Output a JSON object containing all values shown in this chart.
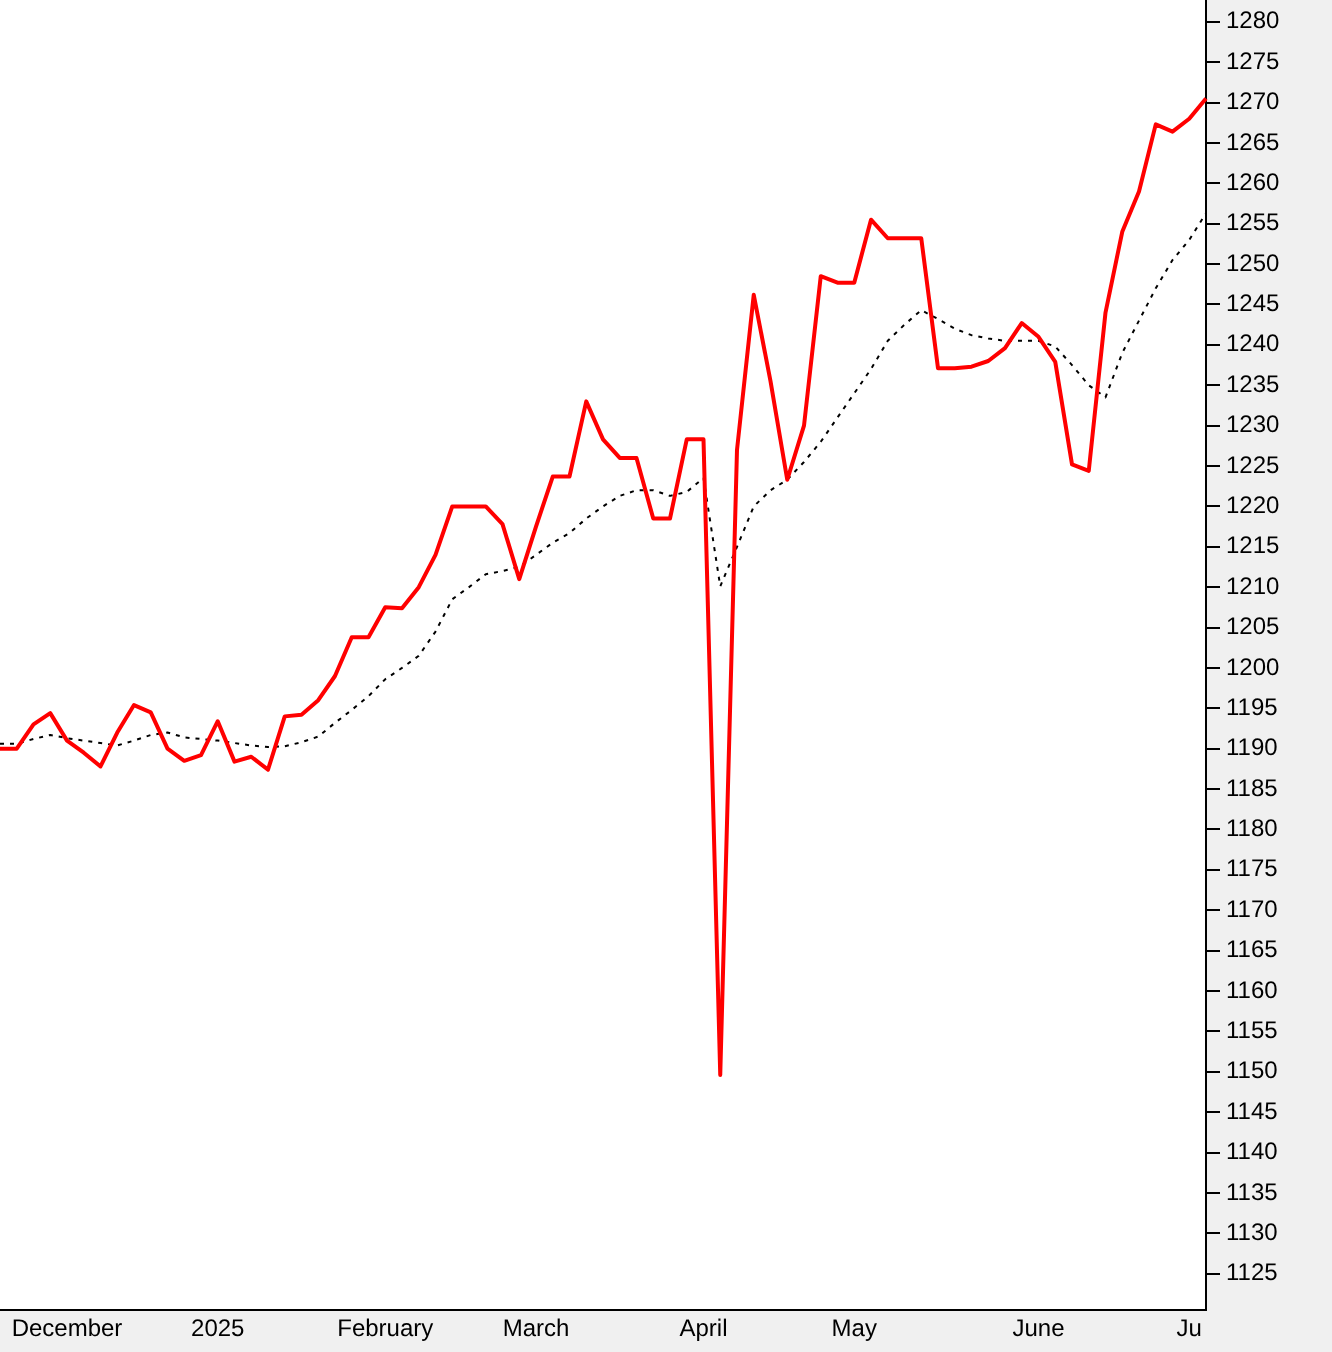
{
  "chart_data": {
    "type": "line",
    "categories": [
      null,
      null,
      null,
      null,
      "December",
      null,
      null,
      null,
      null,
      null,
      null,
      null,
      null,
      "2025",
      null,
      null,
      null,
      null,
      null,
      null,
      null,
      null,
      null,
      "February",
      null,
      null,
      null,
      null,
      null,
      null,
      null,
      null,
      "March",
      null,
      null,
      null,
      null,
      null,
      null,
      null,
      null,
      null,
      "April",
      null,
      null,
      null,
      null,
      null,
      null,
      null,
      null,
      "May",
      null,
      null,
      null,
      null,
      null,
      null,
      null,
      null,
      null,
      null,
      "June",
      null,
      null,
      null,
      null,
      null,
      null,
      null,
      null,
      "Ju",
      null
    ],
    "series": [
      {
        "color": "#ff0000",
        "line_style": "solid",
        "values": [
          1190,
          1190,
          1193,
          1194.4,
          1191,
          1189.5,
          1187.8,
          1192,
          1195.4,
          1194.5,
          1190,
          1188.5,
          1189.2,
          1193.4,
          1188.4,
          1189,
          1187.4,
          1194,
          1194.2,
          1196,
          1199,
          1203.8,
          1203.8,
          1207.5,
          1207.4,
          1210,
          1214,
          1220,
          1220,
          1220,
          1217.8,
          1211,
          1217.5,
          1223.7,
          1223.7,
          1233,
          1228.3,
          1226,
          1226,
          1218.5,
          1218.5,
          1228.3,
          1228.3,
          1149.6,
          1227,
          1246.2,
          1235.5,
          1223.3,
          1230,
          1248.5,
          1247.7,
          1247.7,
          1255.5,
          1253.2,
          1253.2,
          1253.2,
          1237.1,
          1237.1,
          1237.3,
          1238,
          1239.6,
          1242.7,
          1241,
          1237.9,
          1225.2,
          1224.4,
          1244,
          1254,
          1259,
          1267.3,
          1266.4,
          1268,
          1270.5
        ]
      },
      {
        "color": "#000000",
        "line_style": "dotted",
        "values": [
          1190.6,
          1190.6,
          1191.2,
          1191.7,
          1191.3,
          1191,
          1190.7,
          1190.4,
          1191,
          1191.7,
          1192,
          1191.4,
          1191.2,
          1191,
          1190.7,
          1190.4,
          1190.2,
          1190.3,
          1190.8,
          1191.5,
          1193.2,
          1194.8,
          1196.5,
          1198.6,
          1200,
          1201.5,
          1204.5,
          1208.5,
          1210,
          1211.6,
          1212,
          1212.5,
          1214,
          1215.5,
          1216.7,
          1218.5,
          1220,
          1221.3,
          1222,
          1222,
          1221.3,
          1221.8,
          1223.5,
          1210.1,
          1215,
          1220,
          1222,
          1223.3,
          1225.5,
          1228,
          1231,
          1234,
          1237,
          1240.5,
          1242.5,
          1244.3,
          1243.2,
          1242,
          1241.2,
          1240.8,
          1240.5,
          1240.5,
          1240.5,
          1239.8,
          1237.5,
          1235,
          1233.5,
          1239,
          1243,
          1247,
          1250.5,
          1253,
          1256.3
        ]
      }
    ],
    "ylim": [
      1120.5,
      1282.7
    ],
    "yticks": [
      1125,
      1130,
      1135,
      1140,
      1145,
      1150,
      1155,
      1160,
      1165,
      1170,
      1175,
      1180,
      1185,
      1190,
      1195,
      1200,
      1205,
      1210,
      1215,
      1220,
      1225,
      1230,
      1235,
      1240,
      1245,
      1250,
      1255,
      1260,
      1265,
      1270,
      1275,
      1280
    ],
    "grid": false,
    "legend": false,
    "marker": "none"
  }
}
